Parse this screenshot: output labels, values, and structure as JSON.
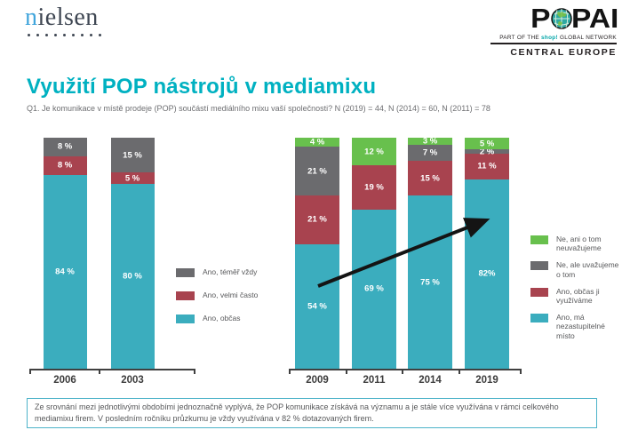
{
  "header": {
    "nielsen_logo": {
      "first_letter": "n",
      "rest": "ielsen",
      "dots": 9
    },
    "popai_logo": {
      "word_first": "P",
      "word_rest": "PAI",
      "tagline_prefix": "PART OF THE ",
      "tagline_brand": "shop!",
      "tagline_suffix": " GLOBAL NETWORK",
      "region": "CENTRAL EUROPE"
    }
  },
  "title": "Využití POP nástrojů v mediamixu",
  "subtitle": "Q1. Je komunikace v místě prodeje (POP) součástí mediálního mixu vaší společnosti? N (2019) = 44, N (2014) = 60, N (2011) = 78",
  "colors": {
    "teal": "#3badbe",
    "red": "#a8434f",
    "gray": "#6b6b6e",
    "green": "#68c04d",
    "title_teal": "#00b1c1",
    "nielsen_blue": "#41a5dc",
    "nielsen_dark": "#3f4753",
    "axis": "#404040",
    "note_border": "#4db3c9"
  },
  "chart_data": [
    {
      "type": "bar",
      "stacked": true,
      "title": "",
      "xlabel": "",
      "ylabel": "",
      "ylim": [
        0,
        100
      ],
      "grid": false,
      "legend_position": "right",
      "categories": [
        "2006",
        "2003"
      ],
      "series": [
        {
          "name": "Ano, občas",
          "color_key": "teal",
          "values": [
            84,
            80
          ],
          "labels": [
            "84 %",
            "80 %"
          ]
        },
        {
          "name": "Ano, velmi často",
          "color_key": "red",
          "values": [
            8,
            5
          ],
          "labels": [
            "8 %",
            "5 %"
          ]
        },
        {
          "name": "Ano, téměř vždy",
          "color_key": "gray",
          "values": [
            8,
            15
          ],
          "labels": [
            "8 %",
            "15 %"
          ]
        }
      ]
    },
    {
      "type": "bar",
      "stacked": true,
      "title": "",
      "xlabel": "",
      "ylabel": "",
      "ylim": [
        0,
        100
      ],
      "grid": false,
      "legend_position": "right",
      "annotation": "upward trend arrow",
      "categories": [
        "2009",
        "2011",
        "2014",
        "2019"
      ],
      "series": [
        {
          "name": "Ano, má nezastupitelné místo",
          "color_key": "teal",
          "values": [
            54,
            69,
            75,
            82
          ],
          "labels": [
            "54 %",
            "69 %",
            "75 %",
            "82%"
          ]
        },
        {
          "name": "Ano, občas ji využíváme",
          "color_key": "red",
          "values": [
            21,
            19,
            15,
            11
          ],
          "labels": [
            "21 %",
            "19 %",
            "15 %",
            "11 %"
          ]
        },
        {
          "name": "Ne, ale uvažujeme o tom",
          "color_key": "gray",
          "values": [
            21,
            0,
            7,
            2
          ],
          "labels": [
            "21 %",
            "",
            "7 %",
            "2 %"
          ]
        },
        {
          "name": "Ne, ani o tom neuvažujeme",
          "color_key": "green",
          "values": [
            4,
            12,
            3,
            5
          ],
          "labels": [
            "4 %",
            "12 %",
            "3 %",
            "5 %"
          ]
        }
      ]
    }
  ],
  "legend_left": [
    {
      "label": "Ano, téměř vždy",
      "color_key": "gray"
    },
    {
      "label": "Ano, velmi často",
      "color_key": "red"
    },
    {
      "label": "Ano, občas",
      "color_key": "teal"
    }
  ],
  "legend_right": [
    {
      "label": "Ne, ani o tom neuvažujeme",
      "color_key": "green"
    },
    {
      "label": "Ne, ale uvažujeme o tom",
      "color_key": "gray"
    },
    {
      "label": "Ano, občas ji využíváme",
      "color_key": "red"
    },
    {
      "label": "Ano, má nezastupitelné místo",
      "color_key": "teal"
    }
  ],
  "note": "Ze srovnání mezi jednotlivými obdobími jednoznačně vyplývá, že POP komunikace získává na významu a je stále více využívána v rámci celkového mediamixu firem. V posledním ročníku průzkumu je vždy využívána v 82 % dotazovaných firem."
}
